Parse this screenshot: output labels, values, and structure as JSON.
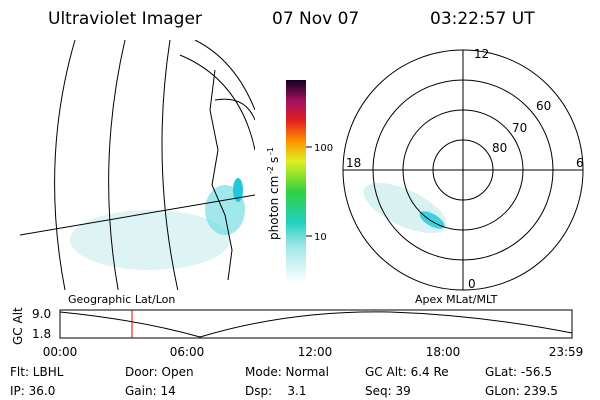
{
  "header": {
    "title": "Ultraviolet Imager",
    "date": "07 Nov 07",
    "time": "03:22:57 UT"
  },
  "colorbar": {
    "label": [
      "photon cm",
      "-2",
      "s",
      "-1"
    ],
    "tick_labels": [
      "100",
      "10"
    ]
  },
  "maps": {
    "left_caption": "Geographic Lat/Lon",
    "right_caption": "Apex MLat/MLT",
    "polar_labels": {
      "top": "12",
      "right": "6",
      "bottom": "0",
      "left": "18",
      "ring_60": "60",
      "ring_70": "70",
      "ring_80": "80"
    }
  },
  "timeline": {
    "axis_label": "GC Alt",
    "y_labels": [
      "9.0",
      "1.8"
    ],
    "x_labels": [
      "00:00",
      "06:00",
      "12:00",
      "18:00",
      "23:59"
    ]
  },
  "info": {
    "rows": [
      [
        "Flt: LBHL",
        "Door: Open",
        "Mode: Normal",
        "GC Alt: 6.4 Re",
        "GLat: -56.5"
      ],
      [
        "IP: 36.0",
        "Gain: 14",
        "Dsp:    3.1",
        "Seq: 39",
        "GLon: 239.5"
      ]
    ]
  }
}
